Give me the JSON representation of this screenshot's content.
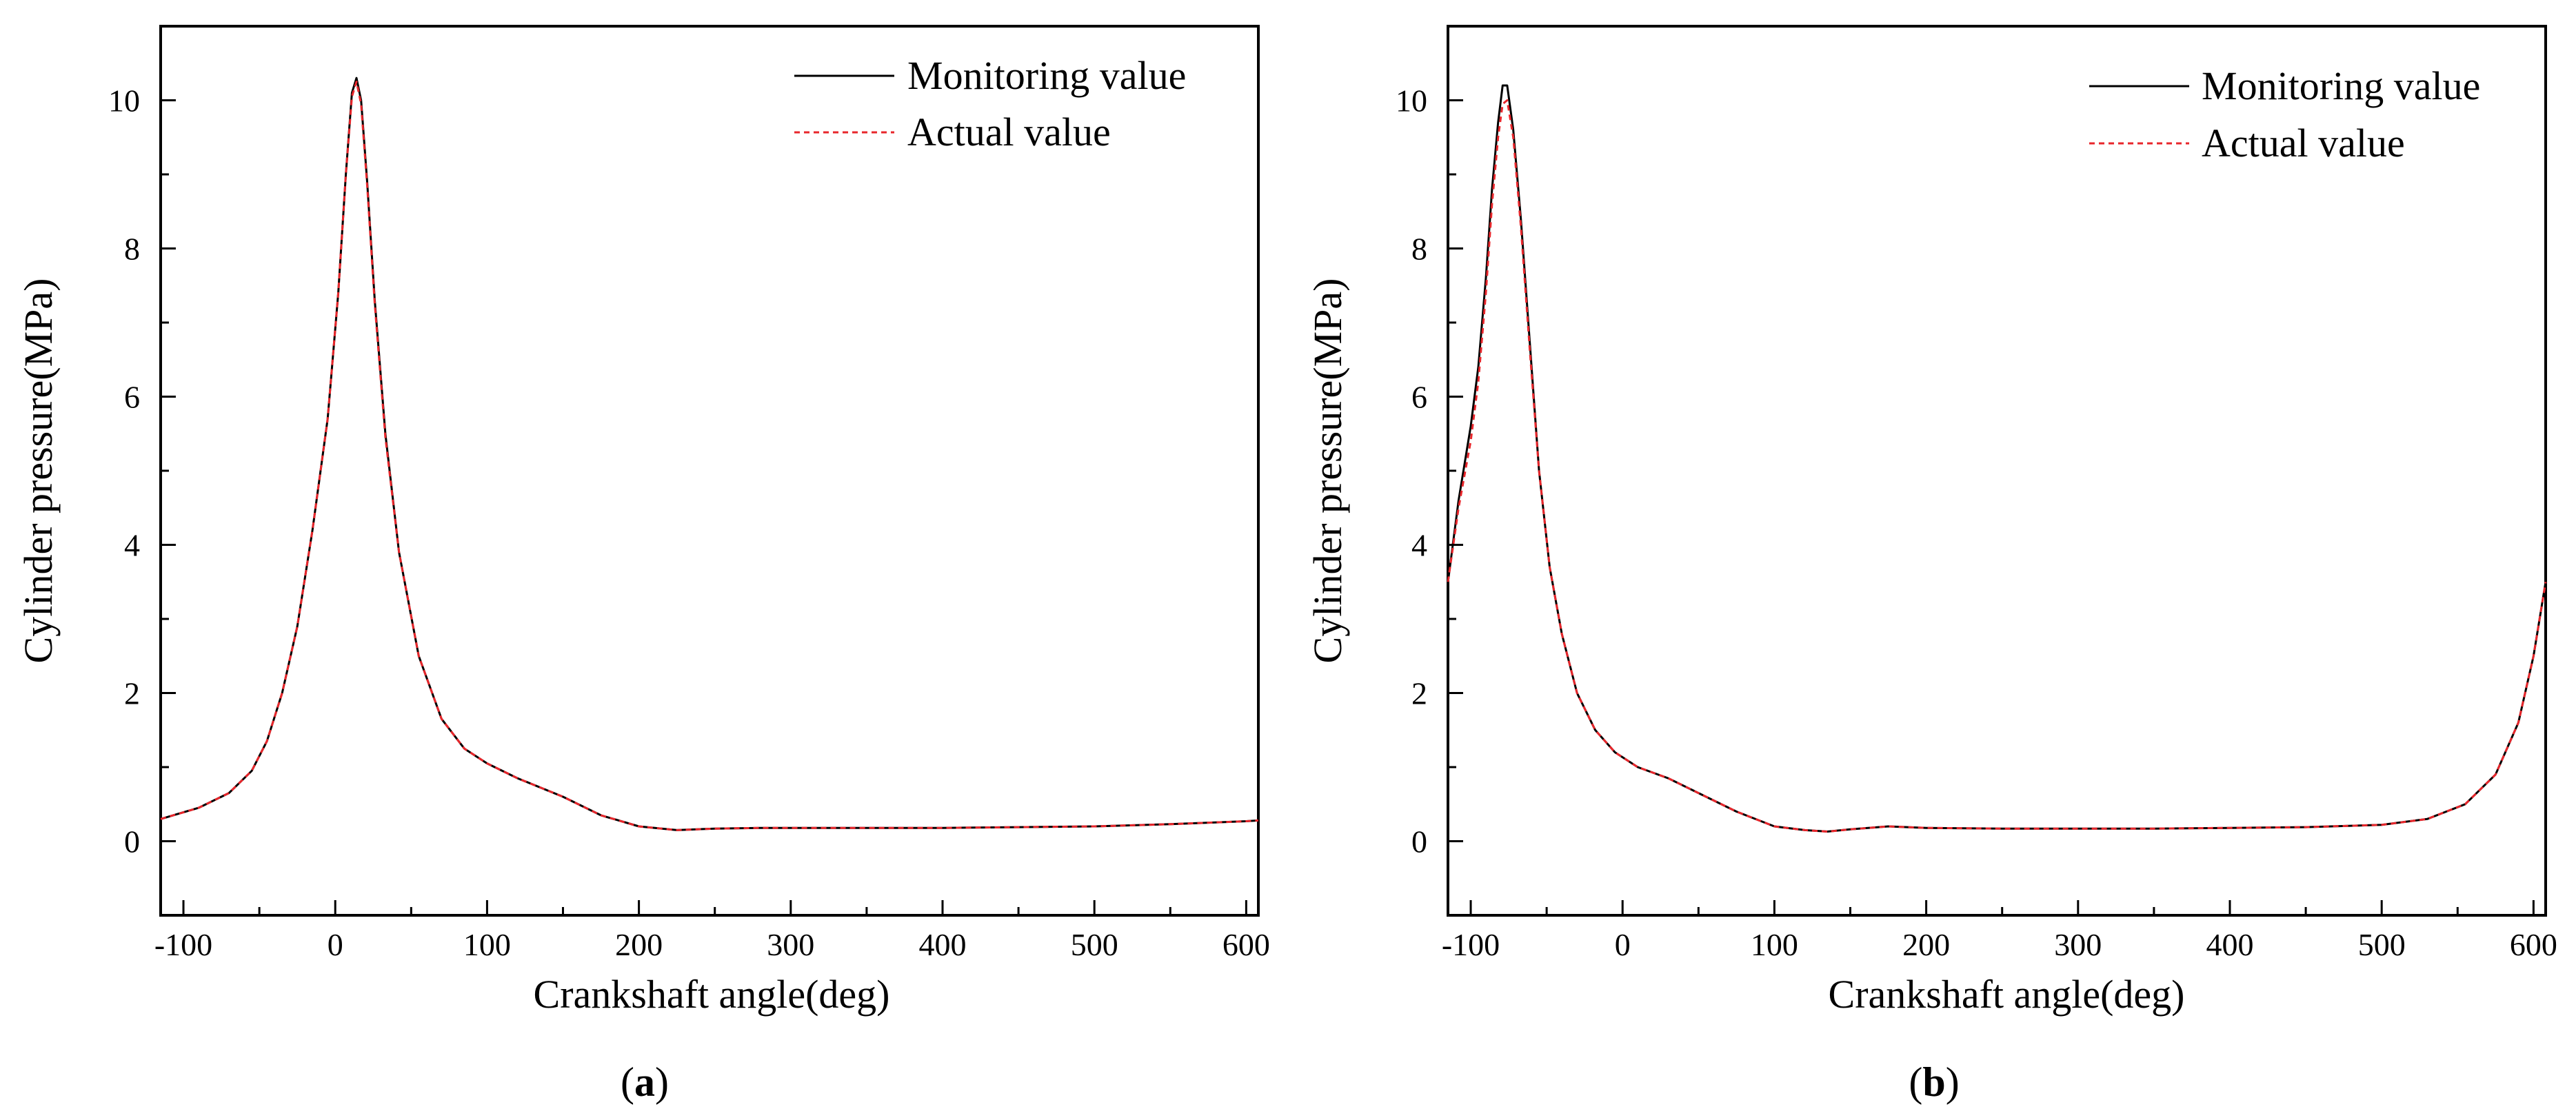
{
  "chart_data": [
    {
      "type": "line",
      "panel_label": "a",
      "xlabel": "Crankshaft angle(deg)",
      "ylabel": "Cylinder pressure(MPa)",
      "xlim": [
        -115,
        608
      ],
      "ylim": [
        -1,
        11
      ],
      "xticks": [
        -100,
        0,
        100,
        200,
        300,
        400,
        500,
        600
      ],
      "yticks": [
        0,
        2,
        4,
        6,
        8,
        10
      ],
      "legend_position": "top-right",
      "series": [
        {
          "name": "Monitoring value",
          "color": "#000000",
          "style": "solid",
          "x": [
            -115,
            -90,
            -70,
            -55,
            -45,
            -35,
            -25,
            -15,
            -5,
            2,
            7,
            11,
            14,
            17,
            21,
            26,
            33,
            42,
            55,
            70,
            85,
            100,
            120,
            150,
            175,
            200,
            225,
            250,
            280,
            320,
            360,
            400,
            450,
            500,
            550,
            600,
            608
          ],
          "y": [
            0.3,
            0.45,
            0.65,
            0.95,
            1.35,
            2.0,
            2.9,
            4.2,
            5.7,
            7.4,
            9.0,
            10.1,
            10.3,
            10.0,
            8.9,
            7.3,
            5.5,
            3.9,
            2.5,
            1.65,
            1.25,
            1.05,
            0.85,
            0.6,
            0.35,
            0.2,
            0.15,
            0.17,
            0.18,
            0.18,
            0.18,
            0.18,
            0.19,
            0.2,
            0.23,
            0.27,
            0.28
          ]
        },
        {
          "name": "Actual value",
          "color": "#e8262b",
          "style": "dashed",
          "x": [
            -115,
            -90,
            -70,
            -55,
            -45,
            -35,
            -25,
            -15,
            -5,
            2,
            7,
            11,
            14,
            17,
            21,
            26,
            33,
            42,
            55,
            70,
            85,
            100,
            120,
            150,
            175,
            200,
            225,
            250,
            280,
            320,
            360,
            400,
            450,
            500,
            550,
            600,
            608
          ],
          "y": [
            0.3,
            0.45,
            0.65,
            0.95,
            1.35,
            2.0,
            2.9,
            4.2,
            5.7,
            7.4,
            9.0,
            10.05,
            10.25,
            9.95,
            8.85,
            7.25,
            5.45,
            3.9,
            2.5,
            1.65,
            1.25,
            1.05,
            0.85,
            0.6,
            0.35,
            0.2,
            0.15,
            0.17,
            0.18,
            0.18,
            0.18,
            0.18,
            0.19,
            0.2,
            0.23,
            0.27,
            0.28
          ]
        }
      ]
    },
    {
      "type": "line",
      "panel_label": "b",
      "xlabel": "Crankshaft angle(deg)",
      "ylabel": "Cylinder pressure(MPa)",
      "xlim": [
        -115,
        608
      ],
      "ylim": [
        -1,
        11
      ],
      "xticks": [
        -100,
        0,
        100,
        200,
        300,
        400,
        500,
        600
      ],
      "yticks": [
        0,
        2,
        4,
        6,
        8,
        10
      ],
      "legend_position": "top-right",
      "series": [
        {
          "name": "Monitoring value",
          "color": "#000000",
          "style": "solid",
          "x": [
            -115,
            -108,
            -100,
            -95,
            -90,
            -86,
            -82,
            -79,
            -76,
            -72,
            -67,
            -61,
            -55,
            -48,
            -40,
            -30,
            -18,
            -5,
            10,
            30,
            50,
            75,
            100,
            120,
            135,
            150,
            175,
            200,
            250,
            300,
            350,
            400,
            450,
            500,
            530,
            555,
            575,
            590,
            600,
            608
          ],
          "y": [
            3.5,
            4.6,
            5.6,
            6.4,
            7.6,
            8.8,
            9.7,
            10.2,
            10.2,
            9.6,
            8.4,
            6.7,
            5.0,
            3.7,
            2.8,
            2.0,
            1.5,
            1.2,
            1.0,
            0.85,
            0.65,
            0.4,
            0.2,
            0.15,
            0.13,
            0.16,
            0.2,
            0.18,
            0.17,
            0.17,
            0.17,
            0.18,
            0.19,
            0.22,
            0.3,
            0.5,
            0.9,
            1.6,
            2.5,
            3.5
          ]
        },
        {
          "name": "Actual value",
          "color": "#e8262b",
          "style": "dashed",
          "x": [
            -115,
            -108,
            -100,
            -95,
            -90,
            -86,
            -82,
            -79,
            -76,
            -72,
            -67,
            -61,
            -55,
            -48,
            -40,
            -30,
            -18,
            -5,
            10,
            30,
            50,
            75,
            100,
            120,
            135,
            150,
            175,
            200,
            250,
            300,
            350,
            400,
            450,
            500,
            530,
            555,
            575,
            590,
            600,
            608
          ],
          "y": [
            3.5,
            4.5,
            5.4,
            6.2,
            7.4,
            8.6,
            9.5,
            9.95,
            10.0,
            9.5,
            8.3,
            6.6,
            5.0,
            3.7,
            2.8,
            2.0,
            1.5,
            1.2,
            1.0,
            0.85,
            0.65,
            0.4,
            0.2,
            0.15,
            0.13,
            0.16,
            0.2,
            0.18,
            0.17,
            0.17,
            0.17,
            0.18,
            0.19,
            0.22,
            0.3,
            0.5,
            0.9,
            1.6,
            2.5,
            3.5
          ]
        }
      ]
    }
  ]
}
